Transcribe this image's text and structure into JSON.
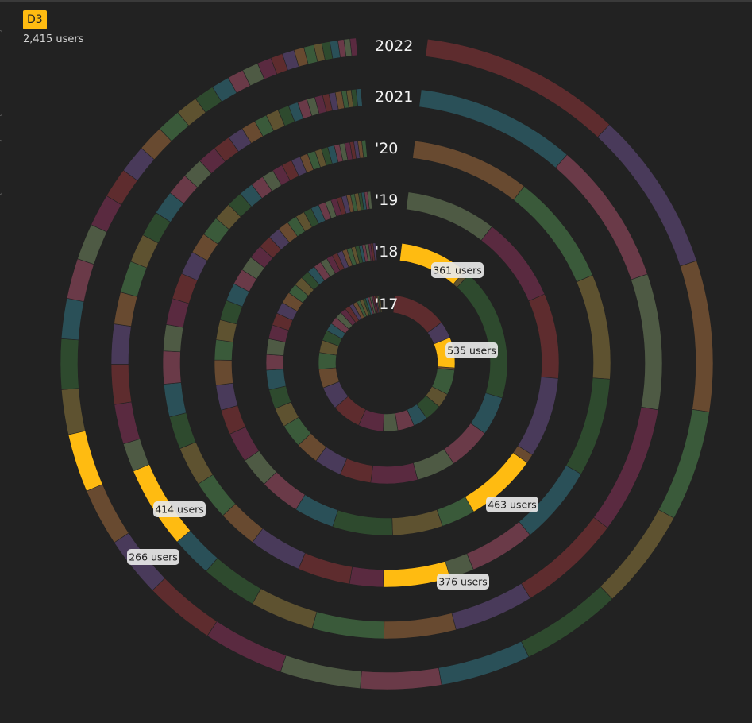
{
  "header": {
    "badge": "D3",
    "total_users": "2,415 users"
  },
  "colors": {
    "highlight": "#ffbb11",
    "background": "#222222",
    "palette": [
      "#5e2c2e",
      "#6a3a48",
      "#5e5230",
      "#493a5a",
      "#4e5a44",
      "#2e4a2e",
      "#684a30",
      "#5a2a40",
      "#2a5058",
      "#3a5a3a"
    ]
  },
  "chart_data": {
    "type": "radial-bar",
    "title": "",
    "total_label": "2,415 users",
    "rings": [
      {
        "label": "'17",
        "highlight": {
          "value": 535,
          "label": "535 users",
          "share": 0.075,
          "start": 0.175
        },
        "segments": [
          0.13,
          0.045,
          0.075,
          0.06,
          0.035,
          0.04,
          0.035,
          0.04,
          0.035,
          0.06,
          0.07,
          0.055,
          0.045,
          0.04,
          0.03,
          0.025,
          0.02,
          0.018,
          0.016,
          0.014,
          0.012,
          0.01,
          0.01,
          0.008,
          0.008,
          0.006,
          0.006,
          0.005,
          0.005,
          0.004,
          0.004,
          0.003,
          0.003,
          0.003,
          0.003
        ]
      },
      {
        "label": "'18",
        "highlight": {
          "value": 361,
          "label": "361 users",
          "share": 0.095,
          "start": 0.0
        },
        "segments": [
          0.095,
          0.17,
          0.05,
          0.055,
          0.05,
          0.06,
          0.04,
          0.035,
          0.03,
          0.03,
          0.025,
          0.025,
          0.025,
          0.02,
          0.02,
          0.018,
          0.016,
          0.015,
          0.015,
          0.013,
          0.012,
          0.011,
          0.01,
          0.01,
          0.009,
          0.008,
          0.007,
          0.007,
          0.006,
          0.006,
          0.005,
          0.005,
          0.004,
          0.004,
          0.004,
          0.003,
          0.003,
          0.003
        ]
      },
      {
        "label": "'19",
        "highlight": {
          "value": 463,
          "label": "463 users",
          "share": 0.07,
          "start": 0.34
        },
        "segments": [
          0.09,
          0.085,
          0.085,
          0.08,
          0.07,
          0.045,
          0.05,
          0.06,
          0.04,
          0.04,
          0.03,
          0.03,
          0.025,
          0.025,
          0.025,
          0.02,
          0.02,
          0.02,
          0.018,
          0.016,
          0.015,
          0.014,
          0.013,
          0.012,
          0.011,
          0.01,
          0.009,
          0.008,
          0.008,
          0.007,
          0.006,
          0.006,
          0.005,
          0.005,
          0.004,
          0.004,
          0.004,
          0.003,
          0.003,
          0.003,
          0.003
        ]
      },
      {
        "label": "'20",
        "highlight": {
          "value": 376,
          "label": "376 users",
          "share": 0.05,
          "start": 0.45
        },
        "segments": [
          0.09,
          0.085,
          0.08,
          0.075,
          0.06,
          0.05,
          0.045,
          0.05,
          0.04,
          0.04,
          0.03,
          0.03,
          0.03,
          0.025,
          0.025,
          0.025,
          0.02,
          0.02,
          0.02,
          0.018,
          0.016,
          0.015,
          0.014,
          0.012,
          0.011,
          0.01,
          0.009,
          0.008,
          0.008,
          0.007,
          0.006,
          0.006,
          0.005,
          0.005,
          0.005,
          0.004,
          0.004,
          0.004,
          0.003,
          0.003,
          0.003,
          0.003
        ]
      },
      {
        "label": "2021",
        "highlight": {
          "value": 414,
          "label": "414 users",
          "share": 0.05,
          "start": 0.64
        },
        "segments": [
          0.1,
          0.09,
          0.085,
          0.08,
          0.065,
          0.05,
          0.045,
          0.045,
          0.04,
          0.035,
          0.035,
          0.03,
          0.03,
          0.025,
          0.025,
          0.025,
          0.02,
          0.02,
          0.018,
          0.016,
          0.015,
          0.014,
          0.013,
          0.012,
          0.011,
          0.01,
          0.009,
          0.008,
          0.008,
          0.007,
          0.006,
          0.006,
          0.005,
          0.005,
          0.004,
          0.004,
          0.004,
          0.003,
          0.003,
          0.003,
          0.003
        ]
      },
      {
        "label": "2022",
        "highlight": {
          "value": 266,
          "label": "266 users",
          "share": 0.03,
          "start": 0.69
        },
        "segments": [
          0.1,
          0.08,
          0.075,
          0.055,
          0.05,
          0.05,
          0.045,
          0.04,
          0.04,
          0.04,
          0.035,
          0.03,
          0.03,
          0.025,
          0.025,
          0.025,
          0.02,
          0.02,
          0.018,
          0.016,
          0.015,
          0.014,
          0.013,
          0.012,
          0.011,
          0.01,
          0.009,
          0.008,
          0.008,
          0.007,
          0.006,
          0.006,
          0.005,
          0.005,
          0.004,
          0.004,
          0.004,
          0.003,
          0.003,
          0.003
        ]
      }
    ]
  }
}
